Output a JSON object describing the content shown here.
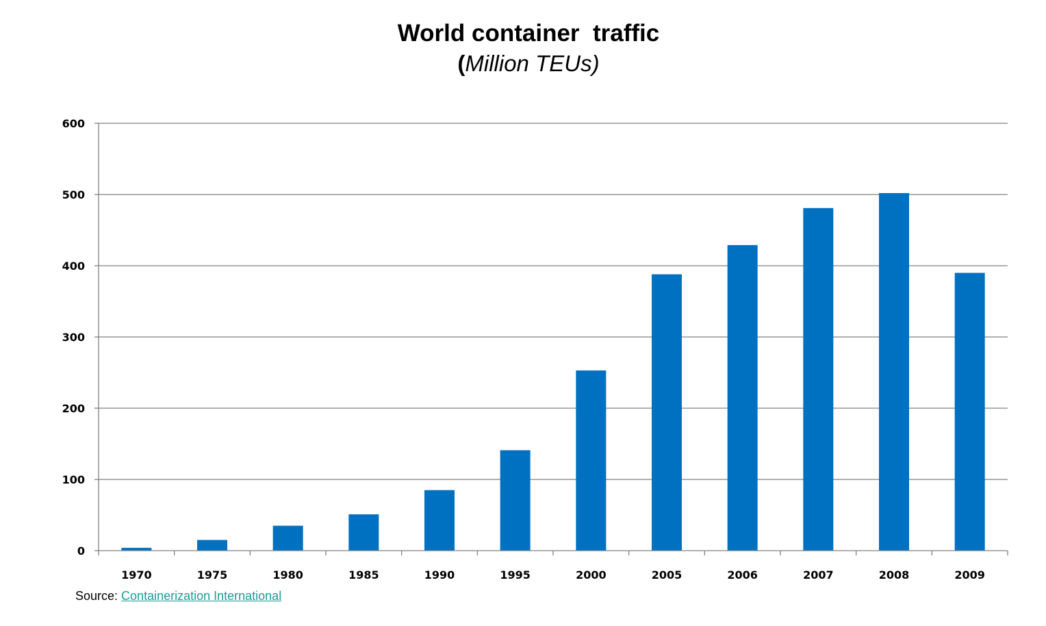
{
  "chart_data": {
    "type": "bar",
    "title": "World container  traffic",
    "subtitle": {
      "open": "(",
      "units": "Million TEUs",
      "close": ")"
    },
    "categories": [
      "1970",
      "1975",
      "1980",
      "1985",
      "1990",
      "1995",
      "2000",
      "2005",
      "2006",
      "2007",
      "2008",
      "2009"
    ],
    "values": [
      4,
      15,
      35,
      51,
      85,
      141,
      253,
      388,
      429,
      481,
      502,
      390
    ],
    "ylim": [
      0,
      600
    ],
    "yticks": [
      0,
      100,
      200,
      300,
      400,
      500,
      600
    ],
    "grid": true,
    "bar_color": "#0070c0",
    "grid_color": "#808080"
  },
  "source": {
    "label": "Source: ",
    "link_text": "Containerization International",
    "link_color": "#1a9a9a"
  }
}
